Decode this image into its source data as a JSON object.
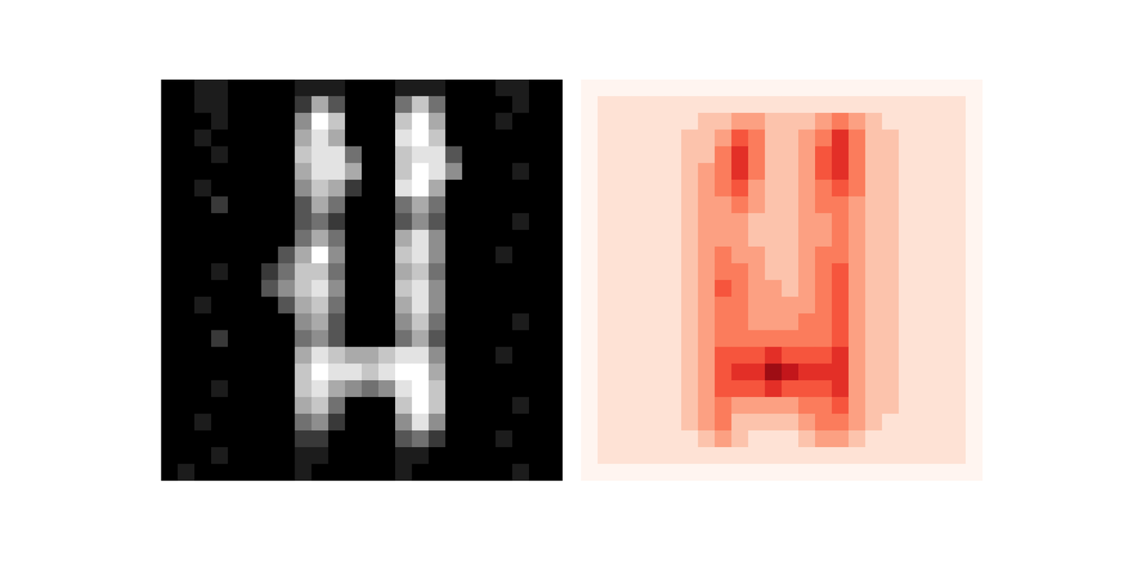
{
  "chart_data": [
    {
      "type": "heatmap",
      "color": "gray",
      "color_range": [
        0,
        9
      ],
      "tick_labels": false,
      "cells": [
        [
          0,
          0,
          1,
          1,
          0,
          0,
          0,
          0,
          1,
          1,
          1,
          0,
          0,
          0,
          1,
          1,
          1,
          0,
          0,
          0,
          1,
          1,
          0,
          0
        ],
        [
          0,
          0,
          1,
          1,
          0,
          0,
          0,
          0,
          2,
          6,
          3,
          0,
          0,
          0,
          4,
          7,
          4,
          0,
          0,
          0,
          0,
          1,
          0,
          0
        ],
        [
          0,
          0,
          0,
          1,
          0,
          0,
          0,
          0,
          5,
          9,
          7,
          0,
          0,
          0,
          7,
          9,
          6,
          0,
          0,
          0,
          1,
          0,
          0,
          0
        ],
        [
          0,
          0,
          1,
          0,
          0,
          0,
          0,
          0,
          6,
          8,
          6,
          0,
          0,
          0,
          8,
          9,
          7,
          0,
          0,
          0,
          0,
          0,
          0,
          0
        ],
        [
          0,
          0,
          0,
          1,
          0,
          0,
          0,
          0,
          7,
          8,
          8,
          4,
          0,
          0,
          7,
          8,
          8,
          3,
          0,
          0,
          0,
          0,
          0,
          0
        ],
        [
          0,
          0,
          0,
          0,
          0,
          0,
          0,
          0,
          6,
          8,
          8,
          6,
          0,
          0,
          7,
          9,
          8,
          5,
          0,
          0,
          0,
          1,
          0,
          0
        ],
        [
          0,
          0,
          1,
          0,
          0,
          0,
          0,
          0,
          5,
          7,
          6,
          2,
          0,
          0,
          8,
          9,
          6,
          0,
          0,
          0,
          0,
          0,
          0,
          0
        ],
        [
          0,
          0,
          0,
          2,
          0,
          0,
          0,
          0,
          3,
          6,
          4,
          0,
          0,
          0,
          4,
          6,
          4,
          0,
          0,
          0,
          0,
          0,
          0,
          0
        ],
        [
          0,
          0,
          0,
          0,
          0,
          0,
          0,
          0,
          3,
          4,
          2,
          0,
          0,
          0,
          3,
          5,
          3,
          0,
          0,
          0,
          0,
          1,
          0,
          0
        ],
        [
          0,
          0,
          0,
          0,
          0,
          0,
          0,
          0,
          4,
          6,
          4,
          0,
          0,
          0,
          6,
          8,
          5,
          0,
          0,
          0,
          0,
          0,
          0,
          0
        ],
        [
          0,
          0,
          0,
          0,
          0,
          0,
          0,
          3,
          6,
          9,
          5,
          0,
          0,
          0,
          7,
          8,
          5,
          0,
          0,
          0,
          1,
          0,
          0,
          0
        ],
        [
          0,
          0,
          0,
          1,
          0,
          0,
          2,
          4,
          7,
          7,
          4,
          0,
          0,
          0,
          6,
          7,
          4,
          0,
          0,
          0,
          0,
          0,
          0,
          0
        ],
        [
          0,
          0,
          0,
          0,
          0,
          0,
          3,
          5,
          7,
          8,
          5,
          0,
          0,
          0,
          7,
          8,
          5,
          0,
          0,
          0,
          0,
          0,
          0,
          0
        ],
        [
          0,
          0,
          1,
          0,
          0,
          0,
          0,
          3,
          6,
          7,
          4,
          0,
          0,
          0,
          6,
          8,
          5,
          0,
          0,
          0,
          0,
          0,
          0,
          0
        ],
        [
          0,
          0,
          0,
          0,
          0,
          0,
          0,
          0,
          5,
          6,
          3,
          0,
          0,
          0,
          5,
          7,
          4,
          0,
          0,
          0,
          0,
          1,
          0,
          0
        ],
        [
          0,
          0,
          0,
          2,
          0,
          0,
          0,
          0,
          4,
          5,
          3,
          0,
          0,
          0,
          4,
          6,
          3,
          0,
          0,
          0,
          0,
          0,
          0,
          0
        ],
        [
          0,
          0,
          0,
          0,
          0,
          0,
          0,
          0,
          6,
          8,
          7,
          6,
          6,
          7,
          8,
          8,
          5,
          0,
          0,
          0,
          1,
          0,
          0,
          0
        ],
        [
          0,
          0,
          0,
          0,
          0,
          0,
          0,
          0,
          7,
          9,
          8,
          8,
          7,
          8,
          9,
          9,
          6,
          0,
          0,
          0,
          0,
          0,
          0,
          0
        ],
        [
          0,
          0,
          0,
          1,
          0,
          0,
          0,
          0,
          7,
          8,
          6,
          5,
          4,
          5,
          8,
          9,
          7,
          0,
          0,
          0,
          0,
          0,
          0,
          0
        ],
        [
          0,
          0,
          0,
          0,
          0,
          0,
          0,
          0,
          6,
          7,
          4,
          0,
          0,
          0,
          7,
          9,
          7,
          0,
          0,
          0,
          0,
          1,
          0,
          0
        ],
        [
          0,
          0,
          1,
          0,
          0,
          0,
          0,
          0,
          4,
          5,
          2,
          0,
          0,
          0,
          5,
          8,
          5,
          0,
          0,
          0,
          0,
          0,
          0,
          0
        ],
        [
          0,
          0,
          0,
          0,
          0,
          0,
          0,
          0,
          2,
          2,
          0,
          0,
          0,
          0,
          3,
          4,
          2,
          0,
          0,
          0,
          1,
          0,
          0,
          0
        ],
        [
          0,
          0,
          0,
          1,
          0,
          0,
          0,
          0,
          1,
          1,
          0,
          0,
          0,
          0,
          1,
          1,
          0,
          0,
          0,
          0,
          0,
          0,
          0,
          0
        ],
        [
          0,
          1,
          0,
          0,
          0,
          0,
          0,
          0,
          1,
          0,
          0,
          0,
          0,
          0,
          1,
          0,
          0,
          0,
          0,
          0,
          0,
          1,
          0,
          0
        ]
      ]
    },
    {
      "type": "heatmap",
      "color": "Reds",
      "color_range": [
        0,
        9
      ],
      "tick_labels": false,
      "cells": [
        [
          0,
          0,
          0,
          0,
          0,
          0,
          0,
          0,
          0,
          0,
          0,
          0,
          0,
          0,
          0,
          0,
          0,
          0,
          0,
          0,
          0,
          0,
          0,
          0
        ],
        [
          0,
          1,
          1,
          1,
          1,
          1,
          1,
          1,
          1,
          1,
          1,
          1,
          1,
          1,
          1,
          1,
          1,
          1,
          1,
          1,
          1,
          1,
          1,
          0
        ],
        [
          0,
          1,
          1,
          1,
          1,
          1,
          1,
          2,
          2,
          3,
          3,
          2,
          2,
          2,
          3,
          4,
          3,
          2,
          1,
          1,
          1,
          1,
          1,
          0
        ],
        [
          0,
          1,
          1,
          1,
          1,
          1,
          2,
          2,
          3,
          5,
          4,
          2,
          2,
          3,
          4,
          6,
          4,
          2,
          2,
          1,
          1,
          1,
          1,
          0
        ],
        [
          0,
          1,
          1,
          1,
          1,
          1,
          2,
          2,
          4,
          6,
          4,
          2,
          2,
          3,
          5,
          6,
          4,
          2,
          2,
          1,
          1,
          1,
          1,
          0
        ],
        [
          0,
          1,
          1,
          1,
          1,
          1,
          2,
          3,
          4,
          6,
          4,
          2,
          2,
          3,
          5,
          6,
          4,
          2,
          2,
          1,
          1,
          1,
          1,
          0
        ],
        [
          0,
          1,
          1,
          1,
          1,
          1,
          2,
          3,
          4,
          5,
          3,
          2,
          2,
          3,
          4,
          5,
          4,
          2,
          2,
          1,
          1,
          1,
          1,
          0
        ],
        [
          0,
          1,
          1,
          1,
          1,
          1,
          2,
          3,
          3,
          4,
          3,
          2,
          2,
          3,
          4,
          4,
          3,
          2,
          2,
          1,
          1,
          1,
          1,
          0
        ],
        [
          0,
          1,
          1,
          1,
          1,
          1,
          2,
          3,
          3,
          3,
          2,
          2,
          2,
          3,
          3,
          4,
          3,
          2,
          2,
          1,
          1,
          1,
          1,
          0
        ],
        [
          0,
          1,
          1,
          1,
          1,
          1,
          2,
          3,
          3,
          3,
          2,
          2,
          2,
          3,
          3,
          4,
          3,
          2,
          2,
          1,
          1,
          1,
          1,
          0
        ],
        [
          0,
          1,
          1,
          1,
          1,
          1,
          2,
          3,
          4,
          3,
          3,
          2,
          2,
          3,
          4,
          4,
          3,
          2,
          2,
          1,
          1,
          1,
          1,
          0
        ],
        [
          0,
          1,
          1,
          1,
          1,
          1,
          2,
          3,
          4,
          4,
          3,
          2,
          2,
          3,
          4,
          5,
          3,
          2,
          2,
          1,
          1,
          1,
          1,
          0
        ],
        [
          0,
          1,
          1,
          1,
          1,
          1,
          2,
          3,
          5,
          4,
          3,
          3,
          2,
          3,
          4,
          5,
          3,
          2,
          2,
          1,
          1,
          1,
          1,
          0
        ],
        [
          0,
          1,
          1,
          1,
          1,
          1,
          2,
          3,
          4,
          4,
          3,
          3,
          3,
          3,
          4,
          5,
          3,
          2,
          2,
          1,
          1,
          1,
          1,
          0
        ],
        [
          0,
          1,
          1,
          1,
          1,
          1,
          2,
          3,
          4,
          4,
          3,
          3,
          3,
          4,
          4,
          5,
          3,
          2,
          2,
          1,
          1,
          1,
          1,
          0
        ],
        [
          0,
          1,
          1,
          1,
          1,
          1,
          2,
          3,
          4,
          4,
          4,
          4,
          4,
          4,
          4,
          5,
          3,
          2,
          2,
          1,
          1,
          1,
          1,
          0
        ],
        [
          0,
          1,
          1,
          1,
          1,
          1,
          2,
          3,
          5,
          5,
          5,
          6,
          5,
          5,
          5,
          6,
          3,
          2,
          2,
          1,
          1,
          1,
          1,
          0
        ],
        [
          0,
          1,
          1,
          1,
          1,
          1,
          2,
          3,
          5,
          6,
          6,
          8,
          7,
          6,
          6,
          6,
          3,
          2,
          2,
          1,
          1,
          1,
          1,
          0
        ],
        [
          0,
          1,
          1,
          1,
          1,
          1,
          2,
          3,
          5,
          5,
          5,
          6,
          5,
          5,
          5,
          6,
          3,
          2,
          2,
          1,
          1,
          1,
          1,
          0
        ],
        [
          0,
          1,
          1,
          1,
          1,
          1,
          2,
          3,
          4,
          3,
          3,
          3,
          3,
          4,
          4,
          5,
          3,
          2,
          2,
          1,
          1,
          1,
          1,
          0
        ],
        [
          0,
          1,
          1,
          1,
          1,
          1,
          2,
          3,
          4,
          2,
          2,
          2,
          2,
          3,
          4,
          4,
          3,
          2,
          1,
          1,
          1,
          1,
          1,
          0
        ],
        [
          0,
          1,
          1,
          1,
          1,
          1,
          1,
          2,
          3,
          2,
          1,
          1,
          1,
          2,
          3,
          3,
          2,
          1,
          1,
          1,
          1,
          1,
          1,
          0
        ],
        [
          0,
          1,
          1,
          1,
          1,
          1,
          1,
          1,
          1,
          1,
          1,
          1,
          1,
          1,
          1,
          1,
          1,
          1,
          1,
          1,
          1,
          1,
          1,
          0
        ],
        [
          0,
          0,
          0,
          0,
          0,
          0,
          0,
          0,
          0,
          0,
          0,
          0,
          0,
          0,
          0,
          0,
          0,
          0,
          0,
          0,
          0,
          0,
          0,
          0
        ]
      ]
    }
  ]
}
